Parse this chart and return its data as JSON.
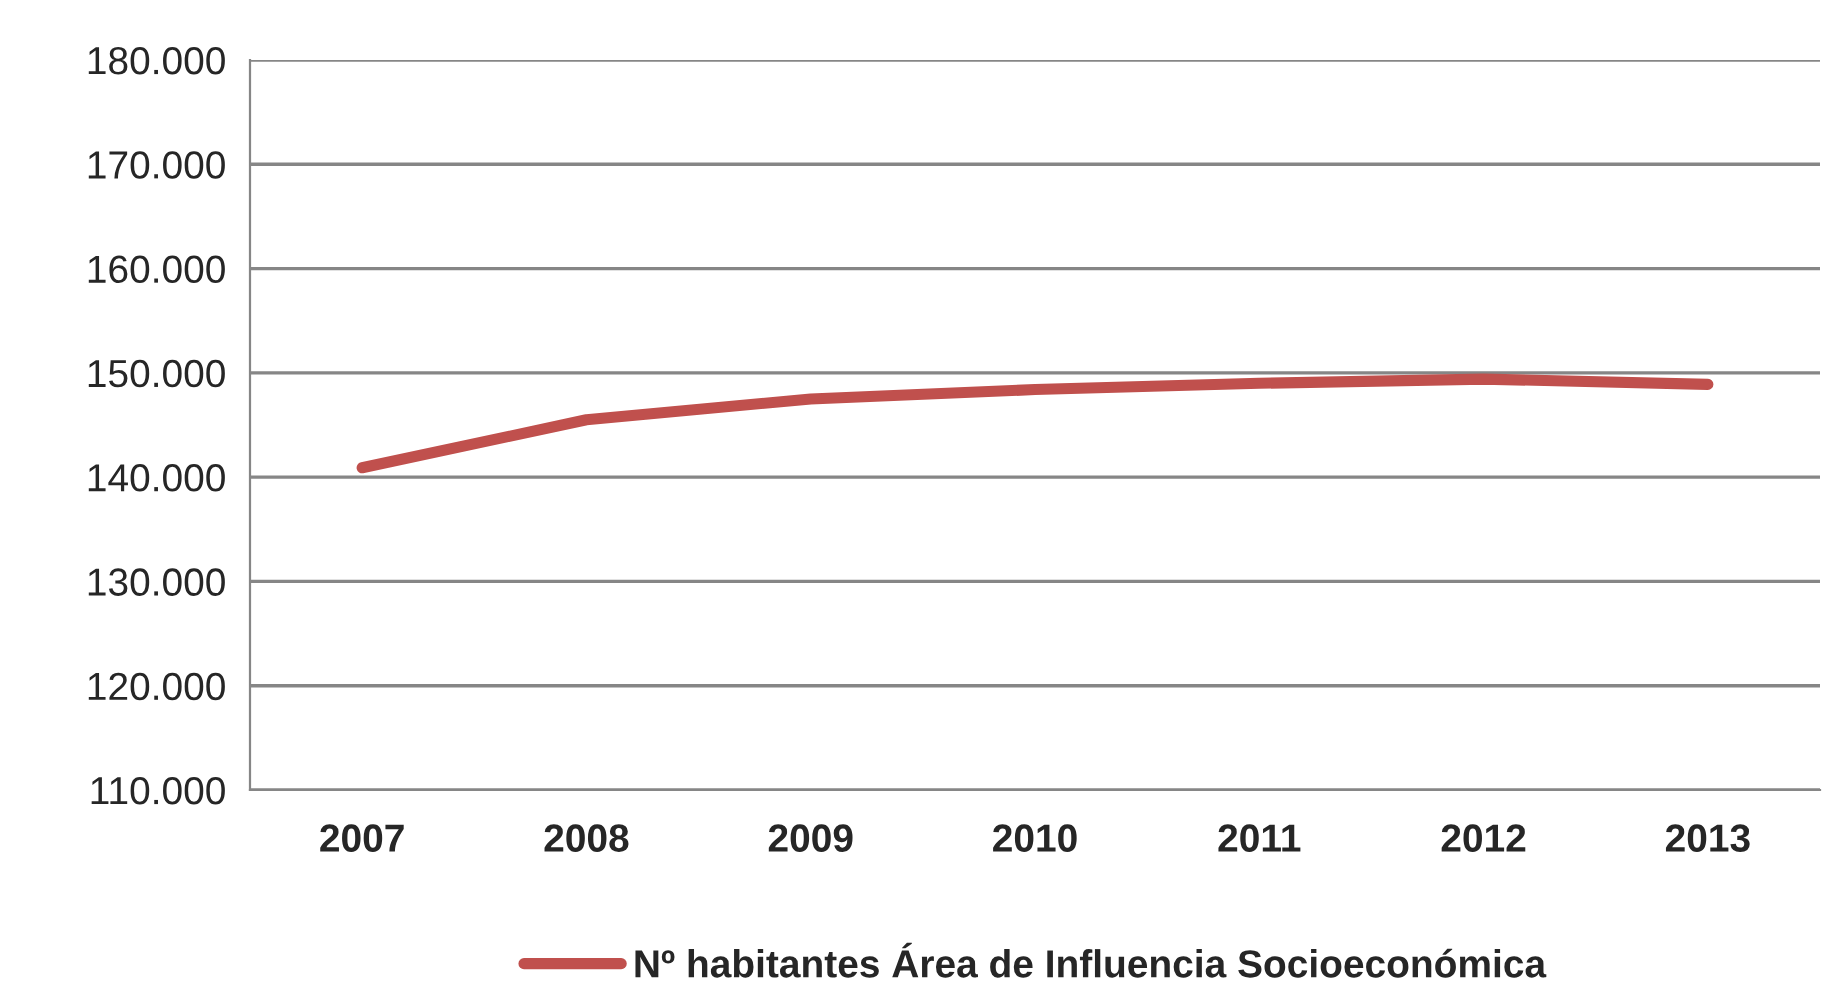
{
  "chart_data": {
    "type": "line",
    "categories": [
      "2007",
      "2008",
      "2009",
      "2010",
      "2011",
      "2012",
      "2013"
    ],
    "series": [
      {
        "name": "Nº habitantes Área de Influencia Socioeconómica",
        "color": "#c0504d",
        "values": [
          140900,
          145500,
          147500,
          148400,
          149000,
          149400,
          148900
        ]
      }
    ],
    "ylim": [
      110000,
      180000
    ],
    "yticks": [
      {
        "value": 110000,
        "label": "110.000"
      },
      {
        "value": 120000,
        "label": "120.000"
      },
      {
        "value": 130000,
        "label": "130.000"
      },
      {
        "value": 140000,
        "label": "140.000"
      },
      {
        "value": 150000,
        "label": "150.000"
      },
      {
        "value": 160000,
        "label": "160.000"
      },
      {
        "value": 170000,
        "label": "170.000"
      },
      {
        "value": 180000,
        "label": "180.000"
      }
    ],
    "grid": "y",
    "legend": "bottom",
    "marker": "none",
    "line_style": "solid"
  }
}
